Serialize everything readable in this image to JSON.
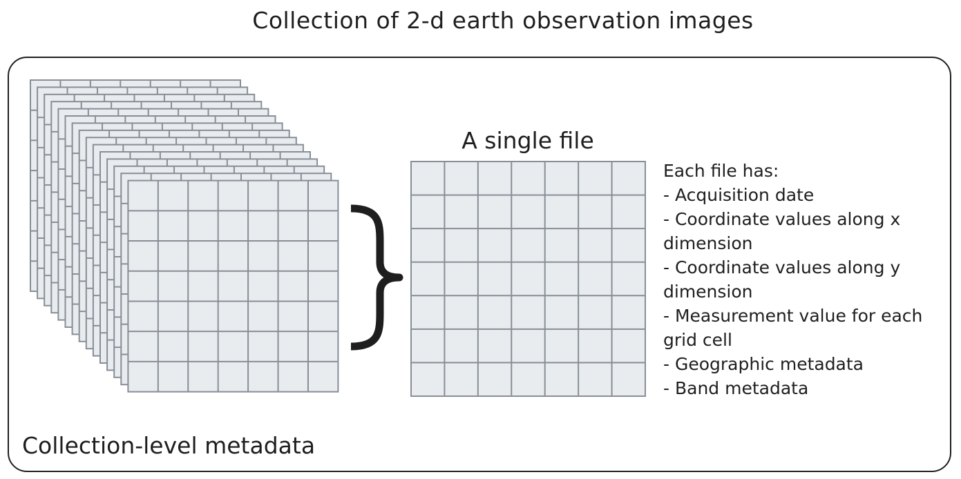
{
  "title": "Collection of 2-d earth observation images",
  "single_file_label": "A single file",
  "info": {
    "heading": "Each file has:",
    "lines": [
      "- Acquisition date",
      "- Coordinate values along x",
      "dimension",
      "- Coordinate values along y",
      "dimension",
      "- Measurement value for each",
      "grid cell",
      "- Geographic metadata",
      "- Band metadata"
    ]
  },
  "collection_label": "Collection-level metadata",
  "colors": {
    "cell_fill": "#e9ecef",
    "grid_line": "#868e96",
    "ink": "#1e1e1e"
  }
}
